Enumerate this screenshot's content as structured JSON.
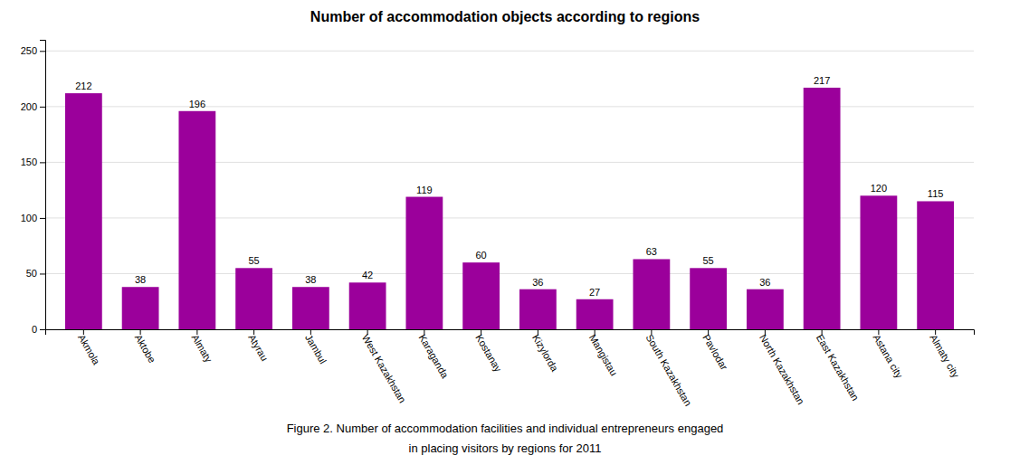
{
  "chart_data": {
    "type": "bar",
    "title": "Number of accommodation objects according to regions",
    "categories": [
      "Akmola",
      "Aktobe",
      "Almaty",
      "Atyrau",
      "Jambul",
      "West Kazakhstan",
      "Karaganda",
      "Kostanay",
      "Kizylorda",
      "Mangistau",
      "South Kazakhstan",
      "Pavlodar",
      "North Kazakhstan",
      "East Kazakhstan",
      "Astana city",
      "Almaty city"
    ],
    "values": [
      212,
      38,
      196,
      55,
      38,
      42,
      119,
      60,
      36,
      27,
      63,
      55,
      36,
      217,
      120,
      115
    ],
    "color": "#9B009B",
    "ylim": [
      0,
      260
    ],
    "yticks": [
      0,
      50,
      100,
      150,
      200,
      250
    ],
    "grid": true,
    "data_labels": true,
    "annotations": [
      "Figure 2. Number of accommodation facilities and individual entrepreneurs engaged",
      "in placing visitors by regions for 2011"
    ]
  }
}
